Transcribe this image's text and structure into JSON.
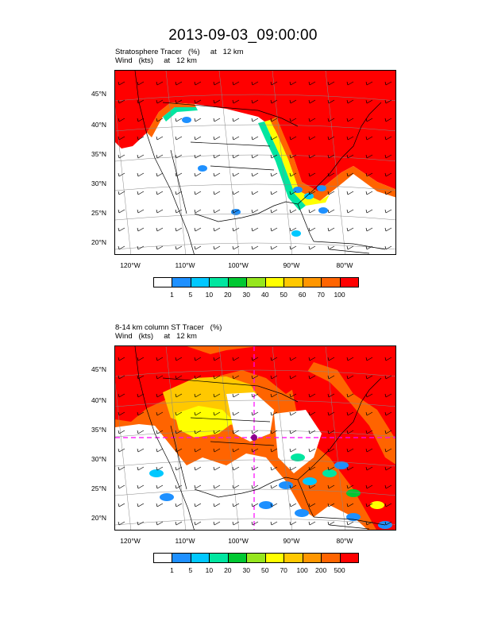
{
  "page_title": "2013-09-03_09:00:00",
  "chart_data": [
    {
      "type": "heatmap",
      "title_line1": "Stratosphere Tracer   (%)     at   12 km",
      "title_line2": "Wind   (kts)     at   12 km",
      "lat_labels": [
        "45°N",
        "40°N",
        "35°N",
        "30°N",
        "25°N",
        "20°N"
      ],
      "lon_labels": [
        "120°W",
        "110°W",
        "100°W",
        "90°W",
        "80°W"
      ],
      "colorbar": {
        "levels": [
          "1",
          "5",
          "10",
          "20",
          "30",
          "40",
          "50",
          "60",
          "70",
          "100"
        ],
        "colors": [
          "#ffffff",
          "#1e90ff",
          "#00c8ff",
          "#00e6a0",
          "#00c832",
          "#96e61e",
          "#ffff00",
          "#ffc800",
          "#ff9600",
          "#ff6400",
          "#ff0000"
        ]
      }
    },
    {
      "type": "heatmap",
      "title_line1": "8-14 km column ST Tracer   (%)",
      "title_line2": "Wind   (kts)     at   12 km",
      "lat_labels": [
        "45°N",
        "40°N",
        "35°N",
        "30°N",
        "25°N",
        "20°N"
      ],
      "lon_labels": [
        "120°W",
        "110°W",
        "100°W",
        "90°W",
        "80°W"
      ],
      "colorbar": {
        "levels": [
          "1",
          "5",
          "10",
          "20",
          "30",
          "50",
          "70",
          "100",
          "200",
          "500"
        ],
        "colors": [
          "#ffffff",
          "#1e90ff",
          "#00c8ff",
          "#00e6a0",
          "#00c832",
          "#96e61e",
          "#ffff00",
          "#ffc800",
          "#ff9600",
          "#ff6400",
          "#ff0000"
        ]
      }
    }
  ]
}
